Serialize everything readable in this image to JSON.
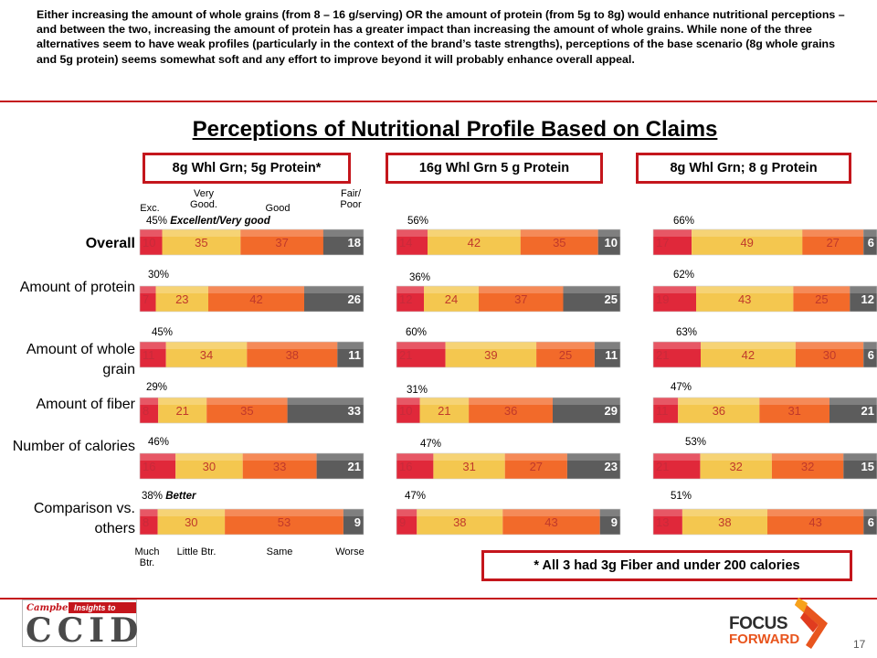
{
  "intro_text": "Either increasing the amount of whole grains (from 8 – 16 g/serving) OR the amount of protein (from 5g to 8g) would enhance nutritional perceptions – and between the two, increasing the amount of protein has a greater impact than increasing the amount of whole grains.  While none of the three alternatives seem to have weak profiles (particularly in the context of the brand’s taste strengths), perceptions of the base scenario (8g whole grains and 5g protein) seems somewhat soft and any effort to improve beyond it will probably enhance overall appeal.",
  "chart_data": {
    "type": "bar",
    "subtype": "stacked-horizontal-100",
    "title": "Perceptions of Nutritional Profile Based on Claims",
    "scenarios": [
      "8g Whl Grn; 5g Protein*",
      "16g Whl Grn 5 g Protein",
      "8g Whl Grn; 8 g Protein"
    ],
    "categories": [
      "Overall",
      "Amount of protein",
      "Amount of whole grain",
      "Amount of fiber",
      "Number of calories",
      "Comparison vs. others"
    ],
    "segment_headers_top": [
      "Exc.",
      "Very Good.",
      "Good",
      "Fair/ Poor"
    ],
    "segment_headers_bottom": [
      "Much Btr.",
      "Little Btr.",
      "Same",
      "Worse"
    ],
    "segment_colors": [
      "#e0283a",
      "#f4c74f",
      "#f26a2a",
      "#5c5c5c"
    ],
    "segment_text_colors": [
      "#c82a3a",
      "#c0392b",
      "#c0392b",
      "#ffffff"
    ],
    "data": [
      [
        [
          10,
          35,
          37,
          18
        ],
        [
          14,
          42,
          35,
          10
        ],
        [
          17,
          49,
          27,
          6
        ]
      ],
      [
        [
          7,
          23,
          42,
          26
        ],
        [
          12,
          24,
          37,
          25
        ],
        [
          19,
          43,
          25,
          12
        ]
      ],
      [
        [
          11,
          34,
          38,
          11
        ],
        [
          21,
          39,
          25,
          11
        ],
        [
          21,
          42,
          30,
          6
        ]
      ],
      [
        [
          8,
          21,
          35,
          33
        ],
        [
          10,
          21,
          36,
          29
        ],
        [
          11,
          36,
          31,
          21
        ]
      ],
      [
        [
          16,
          30,
          33,
          21
        ],
        [
          16,
          31,
          27,
          23
        ],
        [
          21,
          32,
          32,
          15
        ]
      ],
      [
        [
          8,
          30,
          53,
          9
        ],
        [
          9,
          38,
          43,
          9
        ],
        [
          13,
          38,
          43,
          6
        ]
      ]
    ],
    "top_box_labels": [
      [
        "45%",
        "56%",
        "66%"
      ],
      [
        "30%",
        "36%",
        "62%"
      ],
      [
        "45%",
        "60%",
        "63%"
      ],
      [
        "29%",
        "31%",
        "47%"
      ],
      [
        "46%",
        "47%",
        "53%"
      ],
      [
        "38%",
        "47%",
        "51%"
      ]
    ],
    "top_box_notes": {
      "overall": "Excellent/Very good",
      "comparison": "Better"
    }
  },
  "footnote": "* All 3 had 3g Fiber and under 200 calories",
  "logos": {
    "ccid_brand": "Campbell's",
    "ccid_tagline": "Insights to Action",
    "ccid_word": "CCID",
    "focus_line1": "FOCUS",
    "focus_line2": "FORWARD"
  },
  "page_number": "17"
}
